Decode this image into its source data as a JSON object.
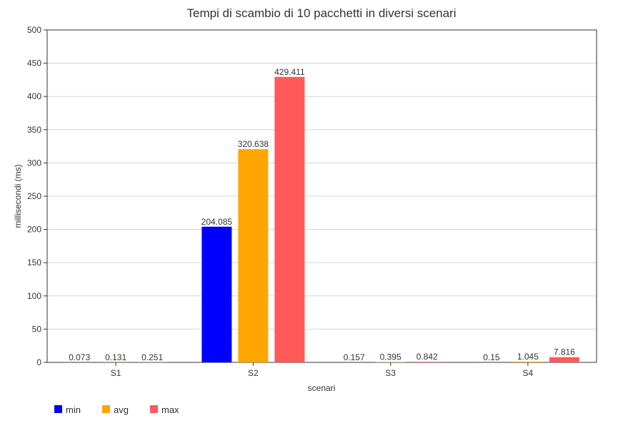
{
  "chart_data": {
    "type": "bar",
    "title": "Tempi di scambio di 10 pacchetti in diversi scenari",
    "xlabel": "scenari",
    "ylabel": "millisecondi (ms)",
    "categories": [
      "S1",
      "S2",
      "S3",
      "S4"
    ],
    "ylim": [
      0,
      500
    ],
    "yticks": [
      0,
      50,
      100,
      150,
      200,
      250,
      300,
      350,
      400,
      450,
      500
    ],
    "grid": true,
    "legend_position": "bottom-left",
    "series": [
      {
        "name": "min",
        "color": "#0000ff",
        "values": [
          0.073,
          204.085,
          0.157,
          0.15
        ],
        "labels": [
          "0.073",
          "204.085",
          "0.157",
          "0.15"
        ]
      },
      {
        "name": "avg",
        "color": "#ffa500",
        "values": [
          0.131,
          320.638,
          0.395,
          1.045
        ],
        "labels": [
          "0.131",
          "320.638",
          "0.395",
          "1.045"
        ]
      },
      {
        "name": "max",
        "color": "#ff5a5a",
        "values": [
          0.251,
          429.411,
          0.842,
          7.816
        ],
        "labels": [
          "0.251",
          "429.411",
          "0.842",
          "7.816"
        ]
      }
    ]
  }
}
